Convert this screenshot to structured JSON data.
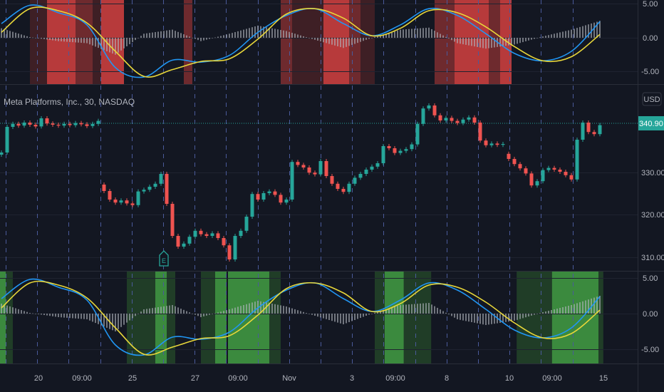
{
  "symbol_legend": "Meta Platforms, Inc., 30, NASDAQ",
  "currency_label": "USD",
  "last_price_label": "340.90",
  "earnings_marker": "E",
  "colors": {
    "background": "#131722",
    "up": "#26a69a",
    "down": "#ef5350",
    "fast_line": "#2196f3",
    "slow_line": "#e8d73a",
    "histogram": "#b2b5be",
    "red_strong": "#b73a3b",
    "red_mid": "#6e2a2e",
    "red_weak": "#3e1f25",
    "green_strong": "#3b8a3e",
    "green_weak": "#203d27"
  },
  "time_axis": [
    "20",
    "09:00",
    "25",
    "27",
    "09:00",
    "Nov",
    "3",
    "09:00",
    "8",
    "10",
    "09:00",
    "15"
  ],
  "chart_data": [
    {
      "type": "line",
      "panel": "top-oscillator",
      "yticks": [
        "5.00",
        "0.00",
        "-5.00"
      ],
      "ylim": [
        -6,
        6
      ],
      "sample_bars": [
        0,
        5,
        10,
        15,
        20,
        25,
        30,
        35,
        40,
        45,
        50,
        55,
        60,
        65,
        70,
        75,
        80,
        85,
        90,
        95,
        100,
        105
      ],
      "series": [
        {
          "color": "#2196f3",
          "values": [
            2.1,
            4.8,
            3.7,
            1.9,
            -4.4,
            -5.8,
            -3.3,
            -3.6,
            -2.6,
            0.8,
            3.3,
            4.3,
            2.1,
            0.3,
            1.9,
            4.3,
            3.3,
            0.6,
            -2.3,
            -3.4,
            -2.0,
            2.4
          ]
        },
        {
          "color": "#e8d73a",
          "values": [
            0.8,
            4.3,
            4.0,
            2.2,
            -2.0,
            -5.7,
            -4.7,
            -3.5,
            -3.1,
            -0.2,
            3.5,
            4.3,
            2.9,
            0.3,
            1.4,
            4.0,
            3.7,
            1.6,
            -1.3,
            -3.4,
            -2.8,
            0.5
          ]
        }
      ],
      "histogram": [
        1.4,
        0.1,
        -0.5,
        -0.8,
        -2.5,
        0.6,
        1.2,
        -0.5,
        0.6,
        1.8,
        1.0,
        -0.3,
        -1.5,
        0.0,
        1.2,
        1.5,
        -0.8,
        -1.6,
        -1.0,
        0.2,
        1.2,
        2.5
      ],
      "background_zones": [
        {
          "from_bar": 5,
          "to_bar": 8,
          "level": "weak"
        },
        {
          "from_bar": 8,
          "to_bar": 13,
          "level": "strong"
        },
        {
          "from_bar": 13,
          "to_bar": 16,
          "level": "mid"
        },
        {
          "from_bar": 16,
          "to_bar": 17.5,
          "level": "weak"
        },
        {
          "from_bar": 17.5,
          "to_bar": 21.5,
          "level": "strong"
        },
        {
          "from_bar": 32,
          "to_bar": 33.5,
          "level": "mid"
        },
        {
          "from_bar": 49,
          "to_bar": 51,
          "level": "mid"
        },
        {
          "from_bar": 51,
          "to_bar": 56.5,
          "level": "weak"
        },
        {
          "from_bar": 56.5,
          "to_bar": 61,
          "level": "strong"
        },
        {
          "from_bar": 61,
          "to_bar": 63,
          "level": "mid"
        },
        {
          "from_bar": 63,
          "to_bar": 65.5,
          "level": "weak"
        },
        {
          "from_bar": 76,
          "to_bar": 79.5,
          "level": "mid"
        },
        {
          "from_bar": 79.5,
          "to_bar": 85.5,
          "level": "strong"
        },
        {
          "from_bar": 85.5,
          "to_bar": 87.5,
          "level": "mid"
        },
        {
          "from_bar": 87.5,
          "to_bar": 89.5,
          "level": "strong"
        }
      ]
    },
    {
      "type": "candlestick",
      "panel": "price",
      "yticks": [
        "330.00",
        "320.00",
        "310.00"
      ],
      "ylim": [
        307,
        348
      ],
      "last_price": 340.9,
      "closes": [
        334.5,
        340.5,
        341.2,
        340.8,
        341.5,
        341.0,
        340.6,
        342.5,
        341.3,
        341.0,
        340.8,
        341.2,
        340.9,
        341.4,
        341.1,
        340.7,
        341.2,
        341.9,
        325.5,
        323.5,
        322.8,
        323.3,
        322.6,
        322.2,
        325.4,
        325.8,
        326.5,
        327.2,
        329.5,
        322.5,
        315.0,
        312.5,
        313.2,
        314.8,
        316.2,
        315.4,
        315.0,
        315.6,
        314.5,
        312.8,
        309.5,
        315.0,
        316.2,
        319.5,
        324.8,
        323.5,
        325.0,
        325.4,
        324.6,
        322.8,
        323.5,
        332.3,
        331.6,
        331.0,
        329.8,
        329.4,
        332.5,
        329.0,
        327.2,
        326.0,
        325.3,
        327.2,
        328.6,
        329.5,
        330.5,
        331.2,
        332.0,
        336.0,
        335.5,
        334.4,
        334.9,
        335.3,
        336.4,
        341.2,
        344.8,
        345.5,
        343.2,
        342.0,
        342.6,
        341.9,
        341.4,
        342.2,
        342.7,
        341.5,
        337.3,
        336.2,
        336.6,
        336.3,
        336.5,
        333.0,
        331.8,
        330.8,
        329.6,
        326.8,
        327.8,
        330.4,
        330.9,
        330.5,
        330.0,
        329.2,
        328.2,
        337.5,
        341.5,
        339.3,
        338.8,
        340.9
      ],
      "first_open": 334.0,
      "gap_opens": {
        "18": 327.0,
        "89": 334.2
      },
      "earnings_bar": 28
    },
    {
      "type": "line",
      "panel": "bottom-oscillator",
      "yticks": [
        "5.00",
        "0.00",
        "-5.00"
      ],
      "ylim": [
        -7,
        5.2
      ],
      "sample_bars": [
        0,
        5,
        10,
        15,
        20,
        25,
        30,
        35,
        40,
        45,
        50,
        55,
        60,
        65,
        70,
        75,
        80,
        85,
        90,
        95,
        100,
        105
      ],
      "series": [
        {
          "color": "#2196f3",
          "values": [
            2.1,
            4.8,
            3.7,
            1.9,
            -4.4,
            -5.8,
            -3.3,
            -3.6,
            -2.6,
            0.8,
            3.3,
            4.3,
            2.1,
            0.3,
            1.9,
            4.3,
            3.3,
            0.6,
            -2.3,
            -3.4,
            -2.0,
            2.4
          ]
        },
        {
          "color": "#e8d73a",
          "values": [
            0.8,
            4.3,
            4.0,
            2.2,
            -2.0,
            -5.7,
            -4.7,
            -3.5,
            -3.1,
            -0.2,
            3.5,
            4.3,
            2.9,
            0.3,
            1.4,
            4.0,
            3.7,
            1.6,
            -1.3,
            -3.4,
            -2.8,
            0.5
          ]
        }
      ],
      "histogram": [
        1.4,
        0.1,
        -0.5,
        -0.8,
        -2.5,
        0.6,
        1.2,
        -0.5,
        0.6,
        1.8,
        1.0,
        -0.3,
        -1.5,
        0.0,
        1.2,
        1.5,
        -0.8,
        -1.6,
        -1.0,
        0.2,
        1.2,
        2.5
      ],
      "background_zones": [
        {
          "from_bar": -0.5,
          "to_bar": 0.75,
          "level": "strong"
        },
        {
          "from_bar": 0.75,
          "to_bar": 2,
          "level": "weak"
        },
        {
          "from_bar": 22,
          "to_bar": 27,
          "level": "weak"
        },
        {
          "from_bar": 27,
          "to_bar": 29,
          "level": "strong"
        },
        {
          "from_bar": 29,
          "to_bar": 30.5,
          "level": "weak"
        },
        {
          "from_bar": 35,
          "to_bar": 37.5,
          "level": "weak"
        },
        {
          "from_bar": 37.5,
          "to_bar": 39.5,
          "level": "strong"
        },
        {
          "from_bar": 39.75,
          "to_bar": 47,
          "level": "strong"
        },
        {
          "from_bar": 47,
          "to_bar": 49,
          "level": "weak"
        },
        {
          "from_bar": 65.5,
          "to_bar": 67.25,
          "level": "weak"
        },
        {
          "from_bar": 67.25,
          "to_bar": 70.6,
          "level": "strong"
        },
        {
          "from_bar": 70.6,
          "to_bar": 75.4,
          "level": "weak"
        },
        {
          "from_bar": 90.4,
          "to_bar": 96.6,
          "level": "weak"
        },
        {
          "from_bar": 96.6,
          "to_bar": 104.75,
          "level": "strong"
        },
        {
          "from_bar": 104.75,
          "to_bar": 105.6,
          "level": "weak"
        }
      ]
    }
  ]
}
